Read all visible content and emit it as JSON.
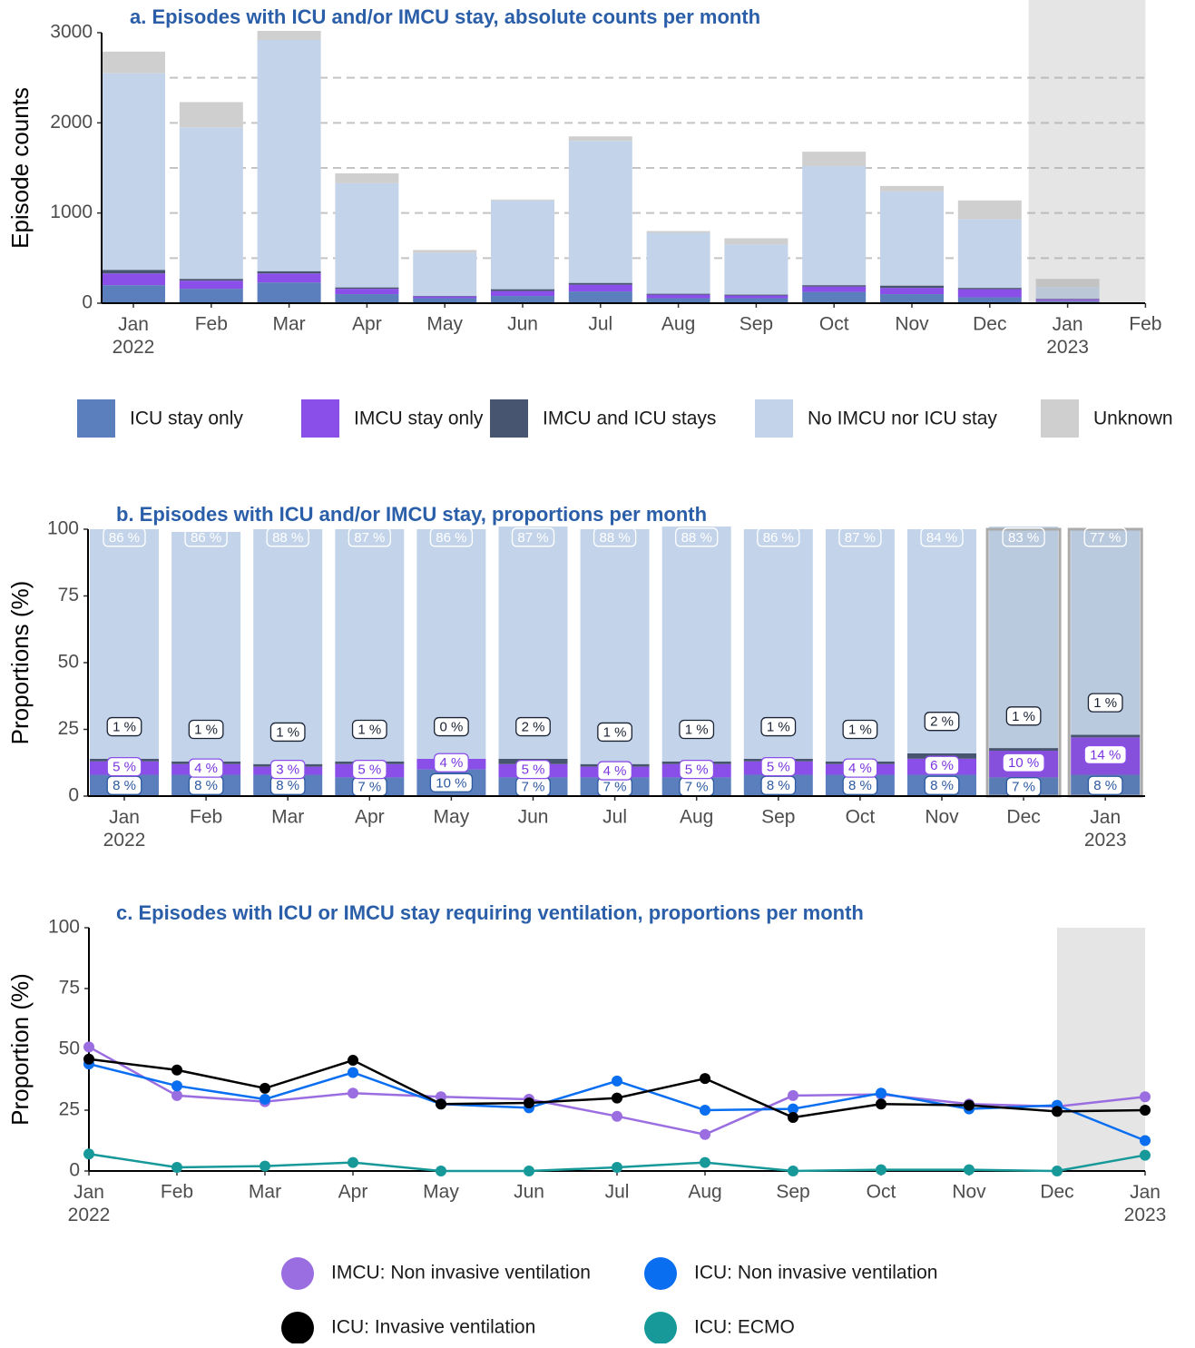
{
  "chart_data": [
    {
      "type": "bar",
      "stacked": true,
      "title": "a. Episodes with ICU and/or IMCU stay, absolute counts per month",
      "y_label": "Episode counts",
      "categories": [
        "Jan\n2022",
        "Feb",
        "Mar",
        "Apr",
        "May",
        "Jun",
        "Jul",
        "Aug",
        "Sep",
        "Oct",
        "Nov",
        "Dec",
        "Jan\n2023",
        "Feb"
      ],
      "series": [
        {
          "name": "ICU stay only",
          "color": "#5b7fbd",
          "values": [
            200,
            160,
            230,
            100,
            55,
            80,
            130,
            55,
            55,
            125,
            100,
            65,
            20,
            null
          ]
        },
        {
          "name": "IMCU stay only",
          "color": "#8a4fe8",
          "values": [
            130,
            90,
            100,
            60,
            20,
            55,
            75,
            40,
            30,
            60,
            70,
            90,
            25,
            null
          ]
        },
        {
          "name": "IMCU and ICU stays",
          "color": "#475570",
          "values": [
            40,
            20,
            25,
            15,
            5,
            20,
            20,
            10,
            10,
            15,
            25,
            15,
            5,
            null
          ]
        },
        {
          "name": "No IMCU nor ICU stay",
          "color": "#c3d4ea",
          "values": [
            2180,
            1680,
            2565,
            1155,
            480,
            985,
            1575,
            675,
            555,
            1320,
            1045,
            760,
            130,
            null
          ]
        },
        {
          "name": "Unknown",
          "color": "#cfcfcf",
          "values": [
            240,
            280,
            100,
            110,
            30,
            10,
            50,
            20,
            70,
            160,
            60,
            210,
            90,
            null
          ]
        }
      ],
      "ylim": [
        0,
        3000
      ],
      "yticks": [
        0,
        1000,
        2000,
        3000
      ],
      "grid_lines": [
        500,
        1000,
        1500,
        2000,
        2500
      ],
      "grid": true,
      "shaded_region": [
        11.5,
        13
      ],
      "legend": "bottom"
    },
    {
      "type": "bar",
      "stacked": true,
      "title": "b. Episodes with ICU and/or IMCU stay, proportions per month",
      "y_label": "Proportions (%)",
      "categories": [
        "Jan\n2022",
        "Feb",
        "Mar",
        "Apr",
        "May",
        "Jun",
        "Jul",
        "Aug",
        "Sep",
        "Oct",
        "Nov",
        "Dec",
        "Jan\n2023"
      ],
      "series": [
        {
          "name": "ICU stay only",
          "color": "#5b7fbd",
          "values": [
            8,
            8,
            8,
            7,
            10,
            7,
            7,
            7,
            8,
            8,
            8,
            7,
            8
          ],
          "value_labels": [
            "8 %",
            "8 %",
            "8 %",
            "7 %",
            "10 %",
            "7 %",
            "7 %",
            "7 %",
            "8 %",
            "8 %",
            "8 %",
            "7 %",
            "8 %"
          ]
        },
        {
          "name": "IMCU stay only",
          "color": "#8a4fe8",
          "values": [
            5,
            4,
            3,
            5,
            4,
            5,
            4,
            5,
            5,
            4,
            6,
            10,
            14
          ],
          "value_labels": [
            "5 %",
            "4 %",
            "3 %",
            "5 %",
            "4 %",
            "5 %",
            "4 %",
            "5 %",
            "5 %",
            "4 %",
            "6 %",
            "10 %",
            "14 %"
          ]
        },
        {
          "name": "IMCU and ICU stays",
          "color": "#475570",
          "values": [
            1,
            1,
            1,
            1,
            0,
            2,
            1,
            1,
            1,
            1,
            2,
            1,
            1
          ],
          "value_labels": [
            "1 %",
            "1 %",
            "1 %",
            "1 %",
            "0 %",
            "2 %",
            "1 %",
            "1 %",
            "1 %",
            "1 %",
            "2 %",
            "1 %",
            "1 %"
          ]
        },
        {
          "name": "No IMCU nor ICU stay",
          "color": "#c3d4ea",
          "values": [
            86,
            86,
            88,
            87,
            86,
            87,
            88,
            88,
            86,
            87,
            84,
            83,
            77
          ],
          "value_labels": [
            "86 %",
            "86 %",
            "88 %",
            "87 %",
            "86 %",
            "87 %",
            "88 %",
            "88 %",
            "86 %",
            "87 %",
            "84 %",
            "83 %",
            "77 %"
          ]
        }
      ],
      "ylim": [
        0,
        100
      ],
      "yticks": [
        0,
        25,
        50,
        75,
        100
      ],
      "outlined_categories": [
        11,
        12
      ]
    },
    {
      "type": "line",
      "title": "c. Episodes with ICU or IMCU stay requiring ventilation, proportions per month",
      "y_label": "Proportion (%)",
      "categories": [
        "Jan\n2022",
        "Feb",
        "Mar",
        "Apr",
        "May",
        "Jun",
        "Jul",
        "Aug",
        "Sep",
        "Oct",
        "Nov",
        "Dec",
        "Jan\n2023"
      ],
      "series": [
        {
          "name": "IMCU: Non invasive ventilation",
          "color": "#9a6ee0",
          "values": [
            51,
            31,
            28.5,
            32,
            30.5,
            29.5,
            22.5,
            15,
            31,
            31.5,
            27.5,
            26.5,
            30.5
          ]
        },
        {
          "name": "ICU: Non invasive ventilation",
          "color": "#0a6ef0",
          "values": [
            44,
            35,
            29.5,
            40.5,
            27.5,
            26,
            37,
            25,
            25.5,
            32,
            25.5,
            27,
            12.5
          ]
        },
        {
          "name": "ICU: Invasive ventilation",
          "color": "#000000",
          "values": [
            46,
            41.5,
            34,
            45.5,
            27.5,
            28,
            30,
            38,
            22,
            27.5,
            27,
            24.5,
            25
          ]
        },
        {
          "name": "ICU: ECMO",
          "color": "#17999a",
          "values": [
            7,
            1.5,
            2,
            3.5,
            0,
            0,
            1.5,
            3.5,
            0,
            0.5,
            0.5,
            0,
            6.5
          ]
        }
      ],
      "ylim": [
        0,
        100
      ],
      "yticks": [
        0,
        25,
        50,
        75,
        100
      ],
      "shaded_region": [
        11,
        12
      ],
      "legend": "bottom"
    }
  ]
}
